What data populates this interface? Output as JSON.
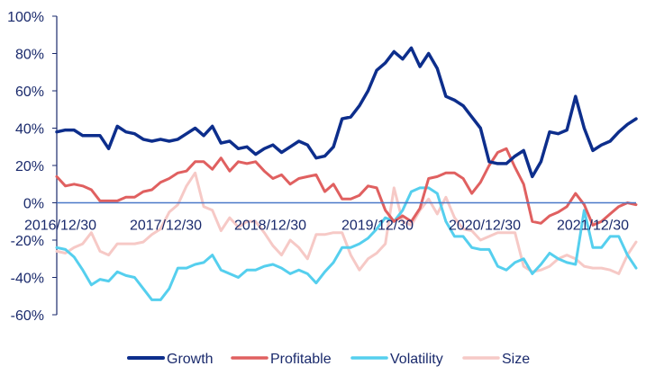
{
  "chart_data": {
    "type": "line",
    "title": "",
    "xlabel": "",
    "ylabel": "",
    "ylim": [
      -60,
      100
    ],
    "y_ticks": [
      "100%",
      "80%",
      "60%",
      "40%",
      "20%",
      "0%",
      "-20%",
      "-40%",
      "-60%"
    ],
    "x_ticks": [
      "2016/12/30",
      "2017/12/30",
      "2018/12/30",
      "2019/12/30",
      "2020/12/30",
      "2021/12/30"
    ],
    "grid": false,
    "legend": "bottom",
    "series": [
      {
        "name": "Growth",
        "color": "#0d2e8c",
        "values": [
          38,
          39,
          39,
          36,
          36,
          36,
          29,
          41,
          38,
          37,
          34,
          33,
          34,
          33,
          34,
          37,
          40,
          36,
          41,
          32,
          33,
          29,
          30,
          26,
          29,
          31,
          27,
          30,
          33,
          31,
          24,
          25,
          30,
          45,
          46,
          52,
          60,
          71,
          75,
          81,
          77,
          83,
          73,
          80,
          72,
          57,
          55,
          52,
          46,
          40,
          22,
          21,
          21,
          25,
          28,
          14,
          22,
          38,
          37,
          39,
          57,
          40,
          28,
          31,
          33,
          38,
          42,
          45
        ]
      },
      {
        "name": "Profitable",
        "color": "#e06060",
        "values": [
          14,
          9,
          10,
          9,
          7,
          1,
          1,
          1,
          3,
          3,
          6,
          7,
          11,
          13,
          16,
          17,
          22,
          22,
          18,
          24,
          17,
          22,
          21,
          22,
          17,
          13,
          15,
          10,
          13,
          14,
          15,
          6,
          10,
          2,
          2,
          4,
          9,
          8,
          -4,
          -10,
          -7,
          -10,
          -3,
          13,
          14,
          16,
          16,
          13,
          5,
          11,
          20,
          27,
          29,
          19,
          10,
          -10,
          -11,
          -7,
          -5,
          -2,
          5,
          -1,
          -12,
          -10,
          -6,
          -2,
          0,
          -1
        ]
      },
      {
        "name": "Volatility",
        "color": "#55cfee",
        "values": [
          -24,
          -25,
          -29,
          -36,
          -44,
          -41,
          -42,
          -37,
          -39,
          -40,
          -46,
          -52,
          -52,
          -46,
          -35,
          -35,
          -33,
          -32,
          -28,
          -36,
          -38,
          -40,
          -36,
          -36,
          -34,
          -33,
          -35,
          -38,
          -36,
          -38,
          -43,
          -37,
          -32,
          -24,
          -24,
          -22,
          -19,
          -14,
          -8,
          -10,
          -4,
          6,
          8,
          8,
          5,
          -10,
          -18,
          -18,
          -24,
          -25,
          -25,
          -34,
          -36,
          -32,
          -30,
          -38,
          -33,
          -27,
          -30,
          -32,
          -33,
          -4,
          -24,
          -24,
          -18,
          -18,
          -28,
          -35
        ]
      },
      {
        "name": "Size",
        "color": "#f6c9c6",
        "values": [
          -26,
          -27,
          -24,
          -22,
          -16,
          -26,
          -28,
          -22,
          -22,
          -22,
          -21,
          -17,
          -14,
          -5,
          -1,
          9,
          16,
          -2,
          -4,
          -15,
          -8,
          -13,
          -10,
          -10,
          -16,
          -23,
          -28,
          -20,
          -24,
          -30,
          -17,
          -17,
          -16,
          -16,
          -28,
          -36,
          -30,
          -27,
          -22,
          8,
          -10,
          -12,
          -4,
          2,
          -6,
          3,
          -8,
          -14,
          -15,
          -20,
          -18,
          -16,
          -16,
          -16,
          -34,
          -37,
          -36,
          -34,
          -30,
          -28,
          -30,
          -34,
          -35,
          -35,
          -36,
          -38,
          -28,
          -21
        ]
      }
    ]
  }
}
